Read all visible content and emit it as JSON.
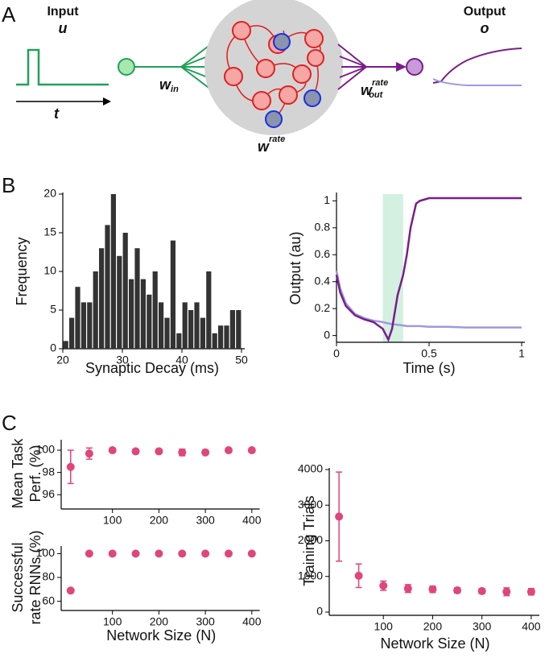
{
  "panels": [
    "A",
    "B",
    "C"
  ],
  "diagram": {
    "input_title": "Input",
    "input_symbol": "u",
    "time_symbol": "t",
    "w_in": {
      "symbol": "w",
      "sub": "in"
    },
    "w_rate": {
      "symbol": "w",
      "sup": "rate"
    },
    "w_out": {
      "symbol": "w",
      "sup": "rate",
      "sub": "out"
    },
    "output_title": "Output",
    "output_symbol": "o"
  },
  "chart_data": [
    {
      "type": "histogram",
      "xlabel": "Synaptic Decay (ms)",
      "ylabel": "Frequency",
      "color": "#333333",
      "bins": [
        20,
        21,
        22,
        23,
        24,
        25,
        26,
        27,
        28,
        29,
        30,
        31,
        32,
        33,
        34,
        35,
        36,
        37,
        38,
        39,
        40,
        41,
        42,
        43,
        44,
        45,
        46,
        47,
        48,
        49,
        50
      ],
      "values": [
        1,
        4,
        8,
        6,
        6,
        10,
        13,
        16,
        20,
        12,
        15,
        9,
        13,
        9,
        7,
        10,
        6,
        4,
        14,
        2,
        6,
        5,
        6,
        4,
        10,
        2,
        3,
        3,
        5,
        5
      ],
      "xlim": [
        20,
        50
      ],
      "xticks": [
        20,
        30,
        40,
        50
      ],
      "ylim": [
        0,
        20
      ],
      "yticks": [
        0,
        5,
        10,
        15,
        20
      ]
    },
    {
      "type": "line",
      "xlabel": "Time (s)",
      "ylabel": "Output (au)",
      "shade": [
        0.25,
        0.36
      ],
      "shade_color": "#d3f0e0",
      "x": [
        0,
        0.02,
        0.05,
        0.1,
        0.15,
        0.2,
        0.25,
        0.28,
        0.3,
        0.33,
        0.36,
        0.38,
        0.4,
        0.43,
        0.45,
        0.5,
        0.6,
        0.7,
        0.8,
        0.9,
        1
      ],
      "series": [
        {
          "color": "#9d9ae0",
          "values": [
            0.48,
            0.35,
            0.24,
            0.16,
            0.13,
            0.11,
            0.1,
            0.09,
            0.085,
            0.08,
            0.075,
            0.07,
            0.07,
            0.07,
            0.07,
            0.065,
            0.065,
            0.06,
            0.06,
            0.06,
            0.06
          ]
        },
        {
          "color": "#7a1d8c",
          "values": [
            0.45,
            0.32,
            0.22,
            0.15,
            0.12,
            0.1,
            0.05,
            -0.03,
            0.05,
            0.3,
            0.45,
            0.6,
            0.8,
            0.98,
            1.0,
            1.02,
            1.02,
            1.02,
            1.02,
            1.02,
            1.02
          ]
        }
      ],
      "xlim": [
        0,
        1
      ],
      "xticks": [
        0,
        0.5,
        1
      ],
      "ylim": [
        -0.05,
        1.05
      ],
      "yticks": [
        0,
        0.2,
        0.4,
        0.6,
        0.8,
        1
      ]
    },
    {
      "type": "errorscatter",
      "ylabel": [
        "Mean Task",
        "Perf. (%)"
      ],
      "color": "#e0457b",
      "x": [
        10,
        50,
        100,
        150,
        200,
        250,
        300,
        350,
        400
      ],
      "values": [
        98.5,
        99.7,
        100,
        99.9,
        99.9,
        99.8,
        99.8,
        100,
        100
      ],
      "errors": [
        1.5,
        0.5,
        0,
        0.2,
        0.2,
        0.3,
        0.2,
        0,
        0
      ],
      "xlim": [
        0,
        410
      ],
      "xticks": [
        100,
        200,
        300,
        400
      ],
      "ylim": [
        95,
        100.8
      ],
      "yticks": [
        96,
        98,
        100
      ]
    },
    {
      "type": "errorscatter",
      "ylabel": [
        "Successful",
        "rate RNNs (%)"
      ],
      "xlabel": "Network Size (N)",
      "color": "#e0457b",
      "x": [
        10,
        50,
        100,
        150,
        200,
        250,
        300,
        350,
        400
      ],
      "values": [
        69,
        100,
        100,
        100,
        100,
        100,
        100,
        100,
        100
      ],
      "xlim": [
        0,
        410
      ],
      "xticks": [
        100,
        200,
        300,
        400
      ],
      "ylim": [
        55,
        105
      ],
      "yticks": [
        60,
        80,
        100
      ]
    },
    {
      "type": "errorscatter",
      "ylabel": "Training Trials",
      "xlabel": "Network Size (N)",
      "color": "#e0457b",
      "x": [
        10,
        50,
        100,
        150,
        200,
        250,
        300,
        350,
        400
      ],
      "values": [
        2680,
        1020,
        740,
        660,
        640,
        610,
        590,
        570,
        570
      ],
      "errors": [
        1250,
        330,
        130,
        110,
        90,
        70,
        70,
        110,
        90
      ],
      "xlim": [
        0,
        410
      ],
      "xticks": [
        100,
        200,
        300,
        400
      ],
      "ylim": [
        0,
        4000
      ],
      "yticks": [
        0,
        1000,
        2000,
        3000,
        4000
      ]
    }
  ]
}
